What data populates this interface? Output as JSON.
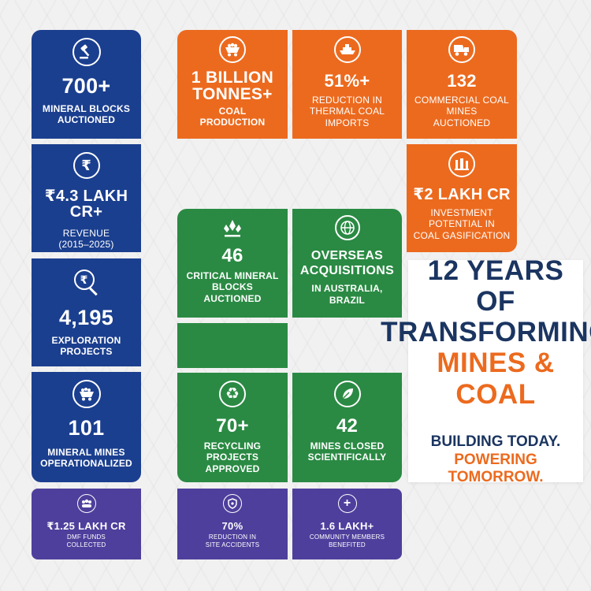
{
  "colors": {
    "blue": "#1b3f8f",
    "orange": "#ec6a1e",
    "green": "#2a8a43",
    "purple": "#4e3f9c",
    "navy_text": "#1b3561"
  },
  "blue_tiles": [
    {
      "icon": "gavel-icon",
      "value": "700+",
      "label_lines": [
        "MINERAL BLOCKS",
        "AUCTIONED"
      ]
    },
    {
      "icon": "rupee-icon",
      "value": "₹4.3 LAKH CR+",
      "label_lines": [
        "REVENUE",
        "(2015–2025)"
      ]
    },
    {
      "icon": "rupee-search-icon",
      "value": "4,195",
      "label_lines": [
        "EXPLORATION",
        "PROJECTS"
      ]
    },
    {
      "icon": "mine-cart-icon",
      "value": "101",
      "label_lines": [
        "MINERAL MINES",
        "OPERATIONALIZED"
      ]
    }
  ],
  "orange_tiles": [
    {
      "icon": "coal-cart-icon",
      "value_lines": [
        "1 BILLION",
        "TONNES+"
      ],
      "label_lines": [
        "COAL",
        "PRODUCTION"
      ]
    },
    {
      "icon": "ship-icon",
      "value_lines": [
        "51%+"
      ],
      "label_lines": [
        "REDUCTION IN",
        "THERMAL COAL",
        "IMPORTS"
      ]
    },
    {
      "icon": "dump-truck-icon",
      "value_lines": [
        "132"
      ],
      "label_lines": [
        "COMMERCIAL COAL",
        "MINES",
        "AUCTIONED"
      ]
    },
    {
      "icon": "factory-icon",
      "value_lines": [
        "₹2 LAKH CR"
      ],
      "label_lines": [
        "INVESTMENT",
        "POTENTIAL IN",
        "COAL GASIFICATION"
      ]
    }
  ],
  "green_tiles": [
    {
      "icon": "crystal-icon",
      "value_lines": [
        "46"
      ],
      "label_lines": [
        "CRITICAL MINERAL",
        "BLOCKS",
        "AUCTIONED"
      ]
    },
    {
      "icon": "globe-icon",
      "value_lines": [
        "OVERSEAS",
        "ACQUISITIONS"
      ],
      "label_lines": [
        "IN AUSTRALIA,",
        "BRAZIL"
      ]
    },
    {
      "icon": "recycle-icon",
      "value_lines": [
        "70+"
      ],
      "label_lines": [
        "RECYCLING",
        "PROJECTS",
        "APPROVED"
      ]
    },
    {
      "icon": "leaf-icon",
      "value_lines": [
        "42"
      ],
      "label_lines": [
        "MINES CLOSED",
        "SCIENTIFICALLY"
      ]
    }
  ],
  "purple_tiles": [
    {
      "icon": "people-icon",
      "value": "₹1.25 LAKH CR",
      "label_lines": [
        "DMF FUNDS",
        "COLLECTED"
      ]
    },
    {
      "icon": "shield-icon",
      "value": "70%",
      "label_lines": [
        "REDUCTION IN",
        "SITE ACCIDENTS"
      ]
    },
    {
      "icon": "plus-icon",
      "value": "1.6 LAKH+",
      "label_lines": [
        "COMMUNITY MEMBERS",
        "BENEFITED"
      ]
    }
  ],
  "headline": {
    "line1": "12 YEARS OF",
    "line2": "TRANSFORMING",
    "line3": "MINES & COAL",
    "tagline1": "BUILDING TODAY.",
    "tagline2": "POWERING TOMORROW."
  }
}
